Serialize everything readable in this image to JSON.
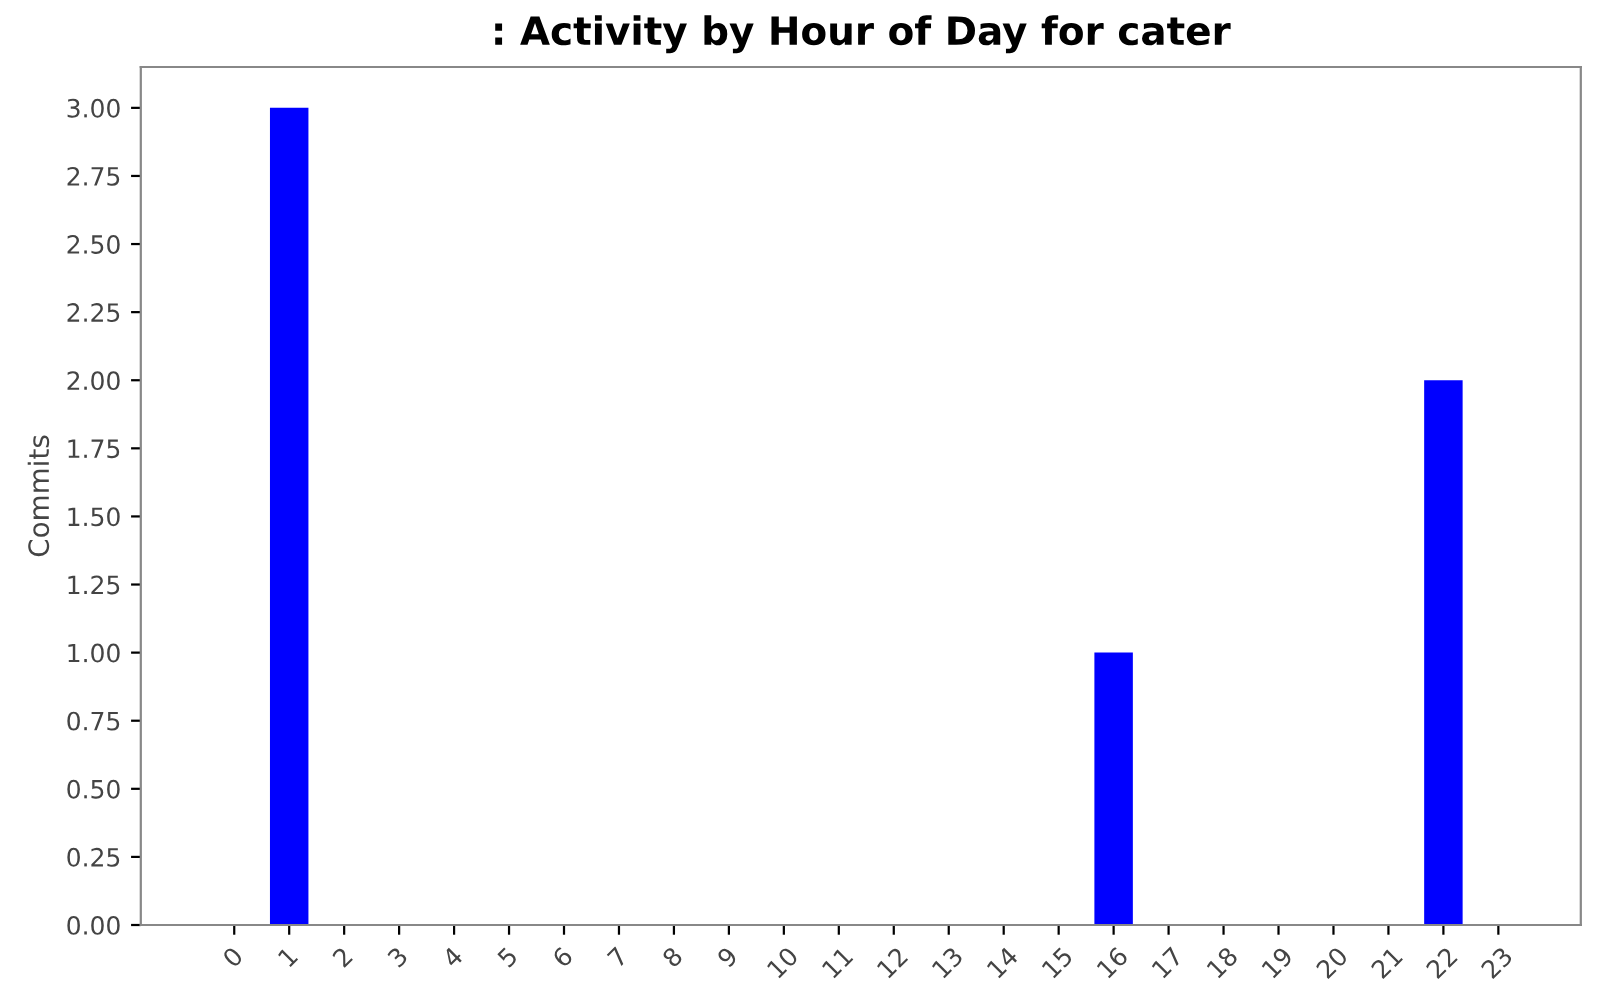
{
  "chart_data": {
    "type": "bar",
    "title": ": Activity by Hour of Day for cater",
    "ylabel": "Commits",
    "categories": [
      "0",
      "1",
      "2",
      "3",
      "4",
      "5",
      "6",
      "7",
      "8",
      "9",
      "10",
      "11",
      "12",
      "13",
      "14",
      "15",
      "16",
      "17",
      "18",
      "19",
      "20",
      "21",
      "22",
      "23"
    ],
    "series": [
      {
        "color": "#0000ff",
        "values": [
          0,
          3,
          0,
          0,
          0,
          0,
          0,
          0,
          0,
          0,
          0,
          0,
          0,
          0,
          0,
          0,
          1,
          0,
          0,
          0,
          0,
          0,
          2,
          0
        ]
      }
    ],
    "ylim": [
      0,
      3.15
    ],
    "yticks": [
      {
        "value": 0,
        "label": "0.00"
      },
      {
        "value": 0.25,
        "label": "0.25"
      },
      {
        "value": 0.5,
        "label": "0.50"
      },
      {
        "value": 0.75,
        "label": "0.75"
      },
      {
        "value": 1,
        "label": "1.00"
      },
      {
        "value": 1.25,
        "label": "1.25"
      },
      {
        "value": 1.5,
        "label": "1.50"
      },
      {
        "value": 1.75,
        "label": "1.75"
      },
      {
        "value": 2,
        "label": "2.00"
      },
      {
        "value": 2.25,
        "label": "2.25"
      },
      {
        "value": 2.5,
        "label": "2.50"
      },
      {
        "value": 2.75,
        "label": "2.75"
      },
      {
        "value": 3,
        "label": "3.00"
      }
    ],
    "grid": false,
    "legend": false
  }
}
